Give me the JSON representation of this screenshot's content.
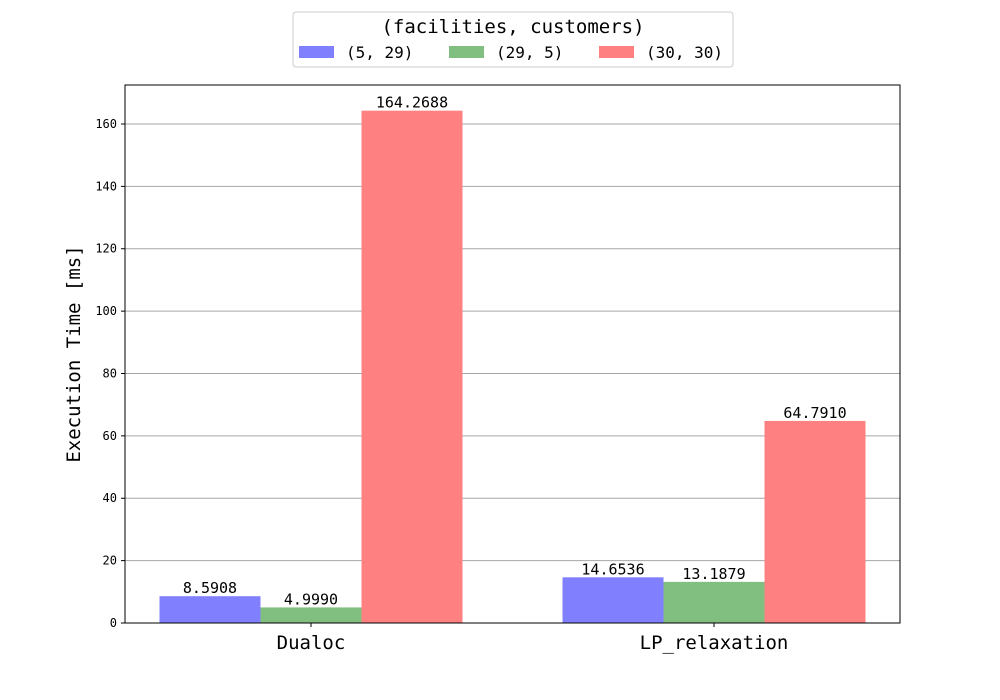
{
  "chart_data": {
    "type": "bar",
    "categories": [
      "Dualoc",
      "LP_relaxation"
    ],
    "series": [
      {
        "name": "(5, 29)",
        "values": [
          8.5908,
          14.6536
        ],
        "labels": [
          "8.5908",
          "14.6536"
        ]
      },
      {
        "name": "(29, 5)",
        "values": [
          4.999,
          13.1879
        ],
        "labels": [
          "4.9990",
          "13.1879"
        ]
      },
      {
        "name": "(30, 30)",
        "values": [
          164.2688,
          64.791
        ],
        "labels": [
          "164.2688",
          "64.7910"
        ]
      }
    ],
    "title": "",
    "xlabel": "",
    "ylabel": "Execution Time [ms]",
    "ylim": [
      0,
      172.5
    ],
    "yticks": [
      0,
      20,
      40,
      60,
      80,
      100,
      120,
      140,
      160
    ],
    "grid": true,
    "legend": {
      "title": "(facilities, customers)",
      "placement": "top-center outside",
      "entries": [
        "(5, 29)",
        "(29, 5)",
        "(30, 30)"
      ]
    },
    "colors": [
      "#8080ff",
      "#80bf80",
      "#ff8080"
    ]
  }
}
